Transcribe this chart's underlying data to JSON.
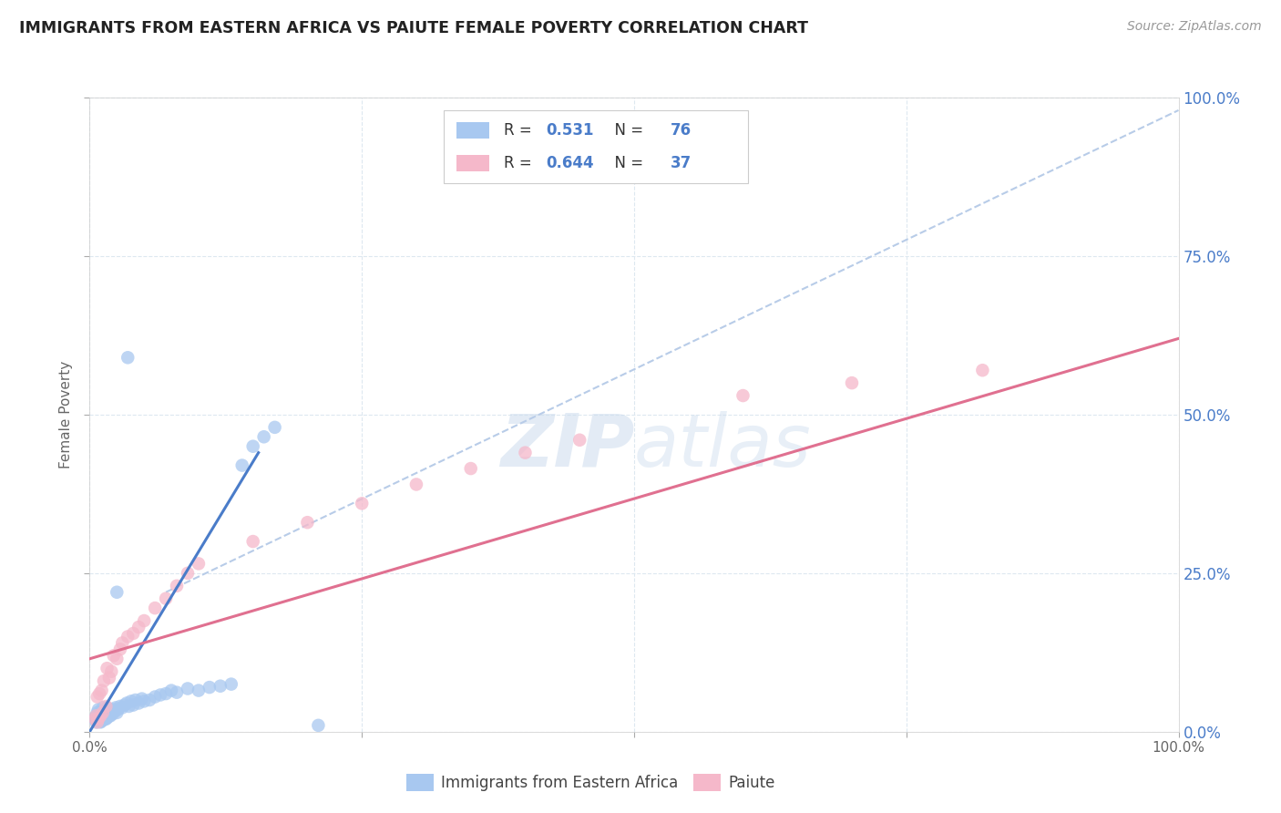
{
  "title": "IMMIGRANTS FROM EASTERN AFRICA VS PAIUTE FEMALE POVERTY CORRELATION CHART",
  "source": "Source: ZipAtlas.com",
  "ylabel": "Female Poverty",
  "xlim": [
    0,
    1
  ],
  "ylim": [
    0,
    1
  ],
  "blue_color": "#a8c8f0",
  "pink_color": "#f5b8ca",
  "blue_line_color": "#4a7cc9",
  "pink_line_color": "#e07090",
  "dashed_line_color": "#b8cce8",
  "R_blue": 0.531,
  "N_blue": 76,
  "R_pink": 0.644,
  "N_pink": 37,
  "legend_label_blue": "Immigrants from Eastern Africa",
  "legend_label_pink": "Paiute",
  "background_color": "#ffffff",
  "grid_color": "#dde8f0",
  "blue_scatter_x": [
    0.005,
    0.006,
    0.007,
    0.007,
    0.008,
    0.008,
    0.009,
    0.009,
    0.01,
    0.01,
    0.01,
    0.011,
    0.011,
    0.012,
    0.012,
    0.012,
    0.013,
    0.013,
    0.014,
    0.014,
    0.015,
    0.015,
    0.016,
    0.016,
    0.017,
    0.018,
    0.019,
    0.02,
    0.021,
    0.022,
    0.023,
    0.024,
    0.025,
    0.026,
    0.028,
    0.03,
    0.032,
    0.034,
    0.036,
    0.038,
    0.04,
    0.042,
    0.045,
    0.048,
    0.05,
    0.055,
    0.06,
    0.065,
    0.07,
    0.075,
    0.08,
    0.09,
    0.1,
    0.11,
    0.12,
    0.13,
    0.14,
    0.15,
    0.16,
    0.17,
    0.006,
    0.007,
    0.008,
    0.009,
    0.01,
    0.011,
    0.012,
    0.013,
    0.014,
    0.015,
    0.016,
    0.017,
    0.018,
    0.025,
    0.035,
    0.21
  ],
  "blue_scatter_y": [
    0.02,
    0.025,
    0.018,
    0.03,
    0.022,
    0.035,
    0.02,
    0.028,
    0.015,
    0.025,
    0.032,
    0.018,
    0.028,
    0.02,
    0.03,
    0.038,
    0.022,
    0.032,
    0.025,
    0.035,
    0.02,
    0.03,
    0.025,
    0.038,
    0.028,
    0.032,
    0.025,
    0.03,
    0.028,
    0.035,
    0.032,
    0.038,
    0.03,
    0.035,
    0.04,
    0.038,
    0.042,
    0.045,
    0.04,
    0.048,
    0.042,
    0.05,
    0.045,
    0.052,
    0.048,
    0.05,
    0.055,
    0.058,
    0.06,
    0.065,
    0.062,
    0.068,
    0.065,
    0.07,
    0.072,
    0.075,
    0.42,
    0.45,
    0.465,
    0.48,
    0.015,
    0.02,
    0.018,
    0.022,
    0.016,
    0.02,
    0.018,
    0.022,
    0.02,
    0.025,
    0.022,
    0.028,
    0.025,
    0.22,
    0.59,
    0.01
  ],
  "pink_scatter_x": [
    0.005,
    0.006,
    0.007,
    0.007,
    0.008,
    0.009,
    0.01,
    0.011,
    0.012,
    0.013,
    0.015,
    0.016,
    0.018,
    0.02,
    0.022,
    0.025,
    0.028,
    0.03,
    0.035,
    0.04,
    0.045,
    0.05,
    0.06,
    0.07,
    0.08,
    0.09,
    0.1,
    0.15,
    0.2,
    0.25,
    0.3,
    0.35,
    0.4,
    0.45,
    0.6,
    0.7,
    0.82
  ],
  "pink_scatter_y": [
    0.02,
    0.025,
    0.015,
    0.055,
    0.02,
    0.06,
    0.025,
    0.065,
    0.03,
    0.08,
    0.04,
    0.1,
    0.085,
    0.095,
    0.12,
    0.115,
    0.13,
    0.14,
    0.15,
    0.155,
    0.165,
    0.175,
    0.195,
    0.21,
    0.23,
    0.25,
    0.265,
    0.3,
    0.33,
    0.36,
    0.39,
    0.415,
    0.44,
    0.46,
    0.53,
    0.55,
    0.57
  ],
  "blue_line_x": [
    0.0,
    0.155
  ],
  "blue_line_y": [
    0.0,
    0.44
  ],
  "dashed_line_x": [
    0.07,
    1.0
  ],
  "dashed_line_y": [
    0.22,
    0.98
  ],
  "pink_line_x": [
    0.0,
    1.0
  ],
  "pink_line_y": [
    0.115,
    0.62
  ]
}
